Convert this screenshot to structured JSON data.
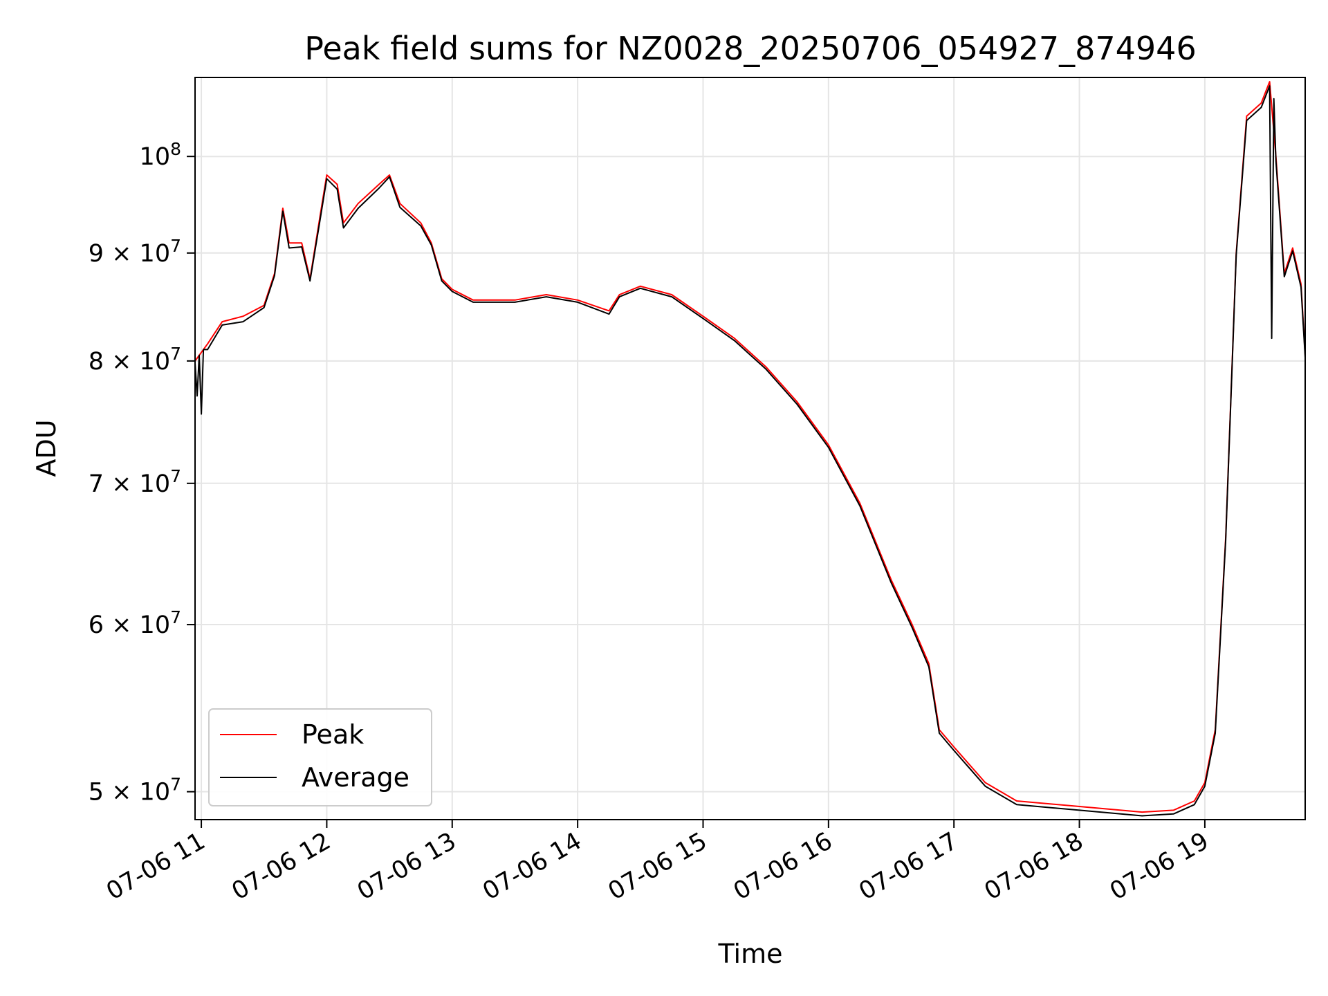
{
  "chart_data": {
    "type": "line",
    "title": "Peak field sums for NZ0028_20250706_054927_874946",
    "xlabel": "Time",
    "ylabel": "ADU",
    "y_scale": "log",
    "xlim": [
      "07-06 10:57",
      "07-06 19:48"
    ],
    "ylim": [
      48500000,
      109000000
    ],
    "grid": true,
    "legend_position": "lower-left",
    "x_ticks": [
      {
        "time": "07-06 11:00",
        "label": "07-06 11"
      },
      {
        "time": "07-06 12:00",
        "label": "07-06 12"
      },
      {
        "time": "07-06 13:00",
        "label": "07-06 13"
      },
      {
        "time": "07-06 14:00",
        "label": "07-06 14"
      },
      {
        "time": "07-06 15:00",
        "label": "07-06 15"
      },
      {
        "time": "07-06 16:00",
        "label": "07-06 16"
      },
      {
        "time": "07-06 17:00",
        "label": "07-06 17"
      },
      {
        "time": "07-06 18:00",
        "label": "07-06 18"
      },
      {
        "time": "07-06 19:00",
        "label": "07-06 19"
      }
    ],
    "y_ticks": [
      {
        "value": 50000000,
        "mantissa": "5",
        "exponent": "7"
      },
      {
        "value": 60000000,
        "mantissa": "6",
        "exponent": "7"
      },
      {
        "value": 70000000,
        "mantissa": "7",
        "exponent": "7"
      },
      {
        "value": 80000000,
        "mantissa": "8",
        "exponent": "7"
      },
      {
        "value": 90000000,
        "mantissa": "9",
        "exponent": "7"
      },
      {
        "value": 100000000,
        "mantissa": "",
        "exponent": "8"
      }
    ],
    "series": [
      {
        "name": "Peak",
        "color": "#ff0000",
        "points": [
          [
            "07-06 10:57",
            80000000
          ],
          [
            "07-06 11:03",
            81500000
          ],
          [
            "07-06 11:10",
            83500000
          ],
          [
            "07-06 11:20",
            84000000
          ],
          [
            "07-06 11:30",
            85000000
          ],
          [
            "07-06 11:35",
            88000000
          ],
          [
            "07-06 11:39",
            94500000
          ],
          [
            "07-06 11:42",
            91000000
          ],
          [
            "07-06 11:48",
            91000000
          ],
          [
            "07-06 11:52",
            87500000
          ],
          [
            "07-06 11:57",
            94000000
          ],
          [
            "07-06 12:00",
            98000000
          ],
          [
            "07-06 12:05",
            97000000
          ],
          [
            "07-06 12:08",
            93000000
          ],
          [
            "07-06 12:15",
            95000000
          ],
          [
            "07-06 12:25",
            97000000
          ],
          [
            "07-06 12:30",
            98000000
          ],
          [
            "07-06 12:35",
            95000000
          ],
          [
            "07-06 12:45",
            93000000
          ],
          [
            "07-06 12:50",
            91000000
          ],
          [
            "07-06 12:55",
            87500000
          ],
          [
            "07-06 13:00",
            86500000
          ],
          [
            "07-06 13:10",
            85500000
          ],
          [
            "07-06 13:30",
            85500000
          ],
          [
            "07-06 13:45",
            86000000
          ],
          [
            "07-06 14:00",
            85500000
          ],
          [
            "07-06 14:15",
            84500000
          ],
          [
            "07-06 14:20",
            86000000
          ],
          [
            "07-06 14:30",
            86800000
          ],
          [
            "07-06 14:45",
            86000000
          ],
          [
            "07-06 15:00",
            84000000
          ],
          [
            "07-06 15:15",
            82000000
          ],
          [
            "07-06 15:30",
            79500000
          ],
          [
            "07-06 15:45",
            76500000
          ],
          [
            "07-06 16:00",
            73000000
          ],
          [
            "07-06 16:15",
            68500000
          ],
          [
            "07-06 16:30",
            63000000
          ],
          [
            "07-06 16:40",
            60000000
          ],
          [
            "07-06 16:48",
            57500000
          ],
          [
            "07-06 16:53",
            53500000
          ],
          [
            "07-06 17:00",
            52500000
          ],
          [
            "07-06 17:15",
            50500000
          ],
          [
            "07-06 17:30",
            49500000
          ],
          [
            "07-06 18:00",
            49200000
          ],
          [
            "07-06 18:30",
            48900000
          ],
          [
            "07-06 18:45",
            49000000
          ],
          [
            "07-06 18:55",
            49500000
          ],
          [
            "07-06 19:00",
            50500000
          ],
          [
            "07-06 19:05",
            53500000
          ],
          [
            "07-06 19:10",
            66000000
          ],
          [
            "07-06 19:15",
            90000000
          ],
          [
            "07-06 19:20",
            104500000
          ],
          [
            "07-06 19:27",
            106000000
          ],
          [
            "07-06 19:31",
            108500000
          ],
          [
            "07-06 19:34",
            100000000
          ],
          [
            "07-06 19:38",
            88000000
          ],
          [
            "07-06 19:42",
            90500000
          ],
          [
            "07-06 19:46",
            87000000
          ],
          [
            "07-06 19:48",
            80500000
          ]
        ]
      },
      {
        "name": "Average",
        "color": "#000000",
        "points": [
          [
            "07-06 10:57",
            79800000
          ],
          [
            "07-06 10:58",
            77000000
          ],
          [
            "07-06 10:59",
            80500000
          ],
          [
            "07-06 11:00",
            75500000
          ],
          [
            "07-06 11:01",
            81000000
          ],
          [
            "07-06 11:03",
            81000000
          ],
          [
            "07-06 11:10",
            83200000
          ],
          [
            "07-06 11:20",
            83500000
          ],
          [
            "07-06 11:30",
            84800000
          ],
          [
            "07-06 11:35",
            87800000
          ],
          [
            "07-06 11:39",
            94200000
          ],
          [
            "07-06 11:42",
            90500000
          ],
          [
            "07-06 11:48",
            90600000
          ],
          [
            "07-06 11:52",
            87300000
          ],
          [
            "07-06 11:57",
            93600000
          ],
          [
            "07-06 12:00",
            97600000
          ],
          [
            "07-06 12:05",
            96500000
          ],
          [
            "07-06 12:08",
            92500000
          ],
          [
            "07-06 12:15",
            94500000
          ],
          [
            "07-06 12:25",
            96600000
          ],
          [
            "07-06 12:30",
            97800000
          ],
          [
            "07-06 12:35",
            94600000
          ],
          [
            "07-06 12:45",
            92700000
          ],
          [
            "07-06 12:50",
            90800000
          ],
          [
            "07-06 12:55",
            87300000
          ],
          [
            "07-06 13:00",
            86300000
          ],
          [
            "07-06 13:10",
            85300000
          ],
          [
            "07-06 13:30",
            85300000
          ],
          [
            "07-06 13:45",
            85800000
          ],
          [
            "07-06 14:00",
            85300000
          ],
          [
            "07-06 14:15",
            84200000
          ],
          [
            "07-06 14:20",
            85800000
          ],
          [
            "07-06 14:30",
            86600000
          ],
          [
            "07-06 14:45",
            85800000
          ],
          [
            "07-06 15:00",
            83800000
          ],
          [
            "07-06 15:15",
            81800000
          ],
          [
            "07-06 15:30",
            79300000
          ],
          [
            "07-06 15:45",
            76300000
          ],
          [
            "07-06 16:00",
            72800000
          ],
          [
            "07-06 16:15",
            68300000
          ],
          [
            "07-06 16:30",
            62800000
          ],
          [
            "07-06 16:40",
            59800000
          ],
          [
            "07-06 16:48",
            57300000
          ],
          [
            "07-06 16:53",
            53300000
          ],
          [
            "07-06 17:00",
            52300000
          ],
          [
            "07-06 17:15",
            50300000
          ],
          [
            "07-06 17:30",
            49300000
          ],
          [
            "07-06 18:00",
            49000000
          ],
          [
            "07-06 18:30",
            48700000
          ],
          [
            "07-06 18:45",
            48800000
          ],
          [
            "07-06 18:55",
            49300000
          ],
          [
            "07-06 19:00",
            50300000
          ],
          [
            "07-06 19:05",
            53300000
          ],
          [
            "07-06 19:10",
            65800000
          ],
          [
            "07-06 19:15",
            89800000
          ],
          [
            "07-06 19:20",
            104000000
          ],
          [
            "07-06 19:27",
            105500000
          ],
          [
            "07-06 19:31",
            108000000
          ],
          [
            "07-06 19:32",
            82000000
          ],
          [
            "07-06 19:33",
            106500000
          ],
          [
            "07-06 19:34",
            99500000
          ],
          [
            "07-06 19:38",
            87700000
          ],
          [
            "07-06 19:42",
            90200000
          ],
          [
            "07-06 19:46",
            86700000
          ],
          [
            "07-06 19:48",
            80300000
          ]
        ]
      }
    ]
  }
}
